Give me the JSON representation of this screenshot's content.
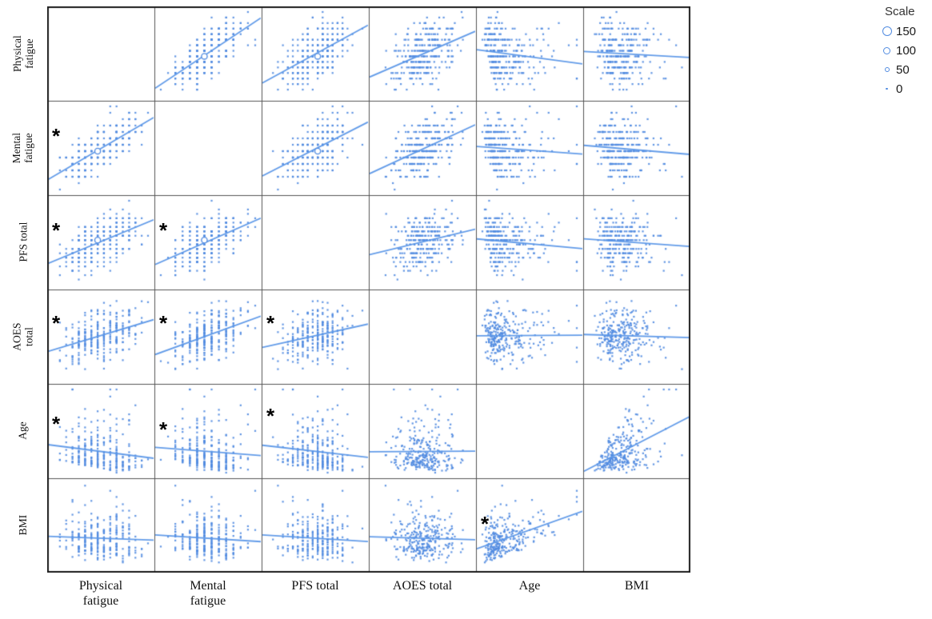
{
  "page": {
    "background": "#ffffff"
  },
  "colors": {
    "point": "#528CE1",
    "trend_line": "#5B97E8",
    "grid_inner": "#555555",
    "grid_outer": "#1F1F1F",
    "label_text": "#111111",
    "asterisk": "#000000"
  },
  "legend": {
    "title": "Scale",
    "entries": [
      {
        "label": "150",
        "value": 150
      },
      {
        "label": "100",
        "value": 100
      },
      {
        "label": "50",
        "value": 50
      },
      {
        "label": "0",
        "value": 0
      }
    ]
  },
  "chart_data": {
    "type": "scatter",
    "subtype": "scatterplot_matrix",
    "diagonal": "empty",
    "n_points": 280,
    "seed": 42,
    "matrix_order": [
      "physical",
      "mental",
      "pfs",
      "aoes",
      "age",
      "bmi"
    ],
    "variables": [
      {
        "key": "physical",
        "label": "Physical fatigue",
        "label_lines": [
          "Physical",
          "fatigue"
        ],
        "loading": 0.87,
        "noise": 0.49,
        "quant": 16,
        "zmin": -2.6,
        "zmax": 2.6,
        "skew": 0
      },
      {
        "key": "mental",
        "label": "Mental fatigue",
        "label_lines": [
          "Mental",
          "fatigue"
        ],
        "loading": 0.87,
        "noise": 0.49,
        "quant": 14,
        "zmin": -2.5,
        "zmax": 2.5,
        "skew": 0
      },
      {
        "key": "pfs",
        "label": "PFS total",
        "label_lines": [
          "PFS total"
        ],
        "loading": 0.62,
        "noise": 0.78,
        "quant": 20,
        "zmin": -2.7,
        "zmax": 2.7,
        "skew": 0
      },
      {
        "key": "aoes",
        "label": "AOES total",
        "label_lines": [
          "AOES total"
        ],
        "loading": 0.52,
        "noise": 0.85,
        "quant": 0,
        "zmin": -2.9,
        "zmax": 2.9,
        "skew": 0
      },
      {
        "key": "age",
        "label": "Age",
        "label_lines": [
          "Age"
        ],
        "loading": -0.22,
        "noise": 0.97,
        "quant": 0,
        "zmin": -1.3,
        "zmax": 3.8,
        "skew": 1
      },
      {
        "key": "bmi",
        "label": "BMI",
        "label_lines": [
          "BMI"
        ],
        "loading": 0,
        "noise": 0.89,
        "quant": 0,
        "zmin": -2.0,
        "zmax": 3.6,
        "skew": 2,
        "depends": "age",
        "beta": 0.45
      }
    ],
    "correlations": {
      "physical-mental": 0.76,
      "physical-pfs": 0.54,
      "physical-aoes": 0.45,
      "physical-age": -0.19,
      "physical-bmi": -0.09,
      "mental-pfs": 0.54,
      "mental-aoes": 0.45,
      "mental-age": -0.19,
      "mental-bmi": -0.09,
      "pfs-aoes": 0.32,
      "pfs-age": -0.14,
      "pfs-bmi": -0.06,
      "aoes-age": -0.11,
      "aoes-bmi": -0.05,
      "age-bmi": 0.45
    },
    "significant_cells": [
      {
        "row": 1,
        "col": 0,
        "marker": "*",
        "fy": 0.37
      },
      {
        "row": 2,
        "col": 0,
        "marker": "*",
        "fy": 0.37
      },
      {
        "row": 2,
        "col": 1,
        "marker": "*",
        "fy": 0.37
      },
      {
        "row": 3,
        "col": 0,
        "marker": "*",
        "fy": 0.36
      },
      {
        "row": 3,
        "col": 1,
        "marker": "*",
        "fy": 0.36
      },
      {
        "row": 3,
        "col": 2,
        "marker": "*",
        "fy": 0.36
      },
      {
        "row": 4,
        "col": 0,
        "marker": "*",
        "fy": 0.42
      },
      {
        "row": 4,
        "col": 1,
        "marker": "*",
        "fy": 0.48
      },
      {
        "row": 4,
        "col": 2,
        "marker": "*",
        "fy": 0.34
      },
      {
        "row": 5,
        "col": 4,
        "marker": "*",
        "fy": 0.48
      }
    ]
  }
}
